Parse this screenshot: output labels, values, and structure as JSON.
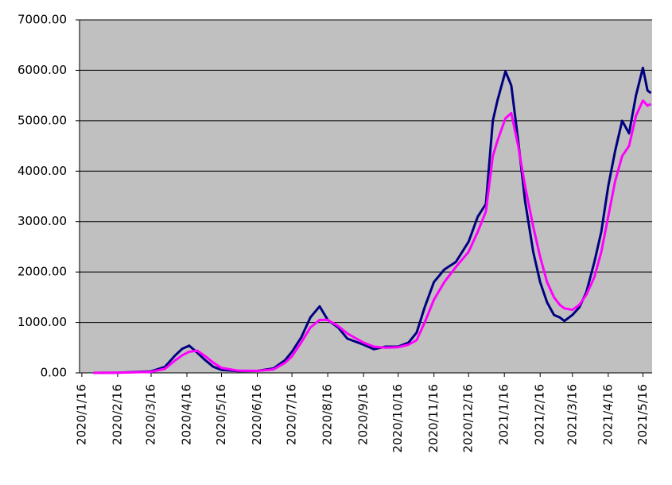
{
  "chart_data": {
    "type": "line",
    "x": [
      "2020/1/26",
      "2020/2/16",
      "2020/3/16",
      "2020/3/28",
      "2020/4/6",
      "2020/4/12",
      "2020/4/18",
      "2020/4/25",
      "2020/5/2",
      "2020/5/9",
      "2020/5/16",
      "2020/5/30",
      "2020/6/16",
      "2020/6/30",
      "2020/7/10",
      "2020/7/16",
      "2020/7/24",
      "2020/8/1",
      "2020/8/9",
      "2020/8/16",
      "2020/8/25",
      "2020/9/2",
      "2020/9/16",
      "2020/9/25",
      "2020/10/5",
      "2020/10/16",
      "2020/10/25",
      "2020/11/1",
      "2020/11/8",
      "2020/11/16",
      "2020/11/25",
      "2020/12/5",
      "2020/12/16",
      "2020/12/24",
      "2020/12/31",
      "2021/1/6",
      "2021/1/10",
      "2021/1/17",
      "2021/1/22",
      "2021/1/28",
      "2021/2/3",
      "2021/2/10",
      "2021/2/16",
      "2021/2/22",
      "2021/2/28",
      "2021/3/5",
      "2021/3/9",
      "2021/3/16",
      "2021/3/22",
      "2021/3/28",
      "2021/4/4",
      "2021/4/10",
      "2021/4/16",
      "2021/4/22",
      "2021/4/28",
      "2021/5/4",
      "2021/5/10",
      "2021/5/16",
      "2021/5/20",
      "2021/5/23"
    ],
    "series": [
      {
        "color": "#000080",
        "values": [
          0,
          5,
          30,
          120,
          350,
          480,
          540,
          400,
          250,
          120,
          60,
          35,
          40,
          90,
          250,
          420,
          700,
          1100,
          1320,
          1050,
          900,
          680,
          560,
          470,
          520,
          520,
          600,
          800,
          1300,
          1800,
          2050,
          2200,
          2600,
          3100,
          3350,
          5000,
          5400,
          5980,
          5700,
          4600,
          3400,
          2400,
          1800,
          1400,
          1150,
          1100,
          1030,
          1150,
          1300,
          1600,
          2200,
          2800,
          3700,
          4400,
          5000,
          4750,
          5500,
          6050,
          5600,
          5550
        ]
      },
      {
        "color": "#ff00ff",
        "values": [
          0,
          3,
          20,
          80,
          250,
          350,
          420,
          440,
          330,
          200,
          100,
          45,
          40,
          70,
          200,
          330,
          600,
          900,
          1050,
          1050,
          930,
          780,
          600,
          520,
          500,
          510,
          560,
          650,
          1000,
          1450,
          1800,
          2100,
          2400,
          2800,
          3200,
          4300,
          4600,
          5050,
          5150,
          4500,
          3700,
          2900,
          2300,
          1800,
          1500,
          1350,
          1280,
          1250,
          1350,
          1550,
          1900,
          2400,
          3100,
          3800,
          4300,
          4500,
          5100,
          5400,
          5300,
          5330
        ]
      }
    ],
    "xlim": [
      "2020/1/14",
      "2021/5/24"
    ],
    "xticks": [
      "2020/1/16",
      "2020/2/16",
      "2020/3/16",
      "2020/4/16",
      "2020/5/16",
      "2020/6/16",
      "2020/7/16",
      "2020/8/16",
      "2020/9/16",
      "2020/10/16",
      "2020/11/16",
      "2020/12/16",
      "2021/1/16",
      "2021/2/16",
      "2021/3/16",
      "2021/4/16",
      "2021/5/16"
    ],
    "ylim": [
      0,
      7000
    ],
    "yticks": [
      {
        "value": 0,
        "label": "0.00"
      },
      {
        "value": 1000,
        "label": "1000.00"
      },
      {
        "value": 2000,
        "label": "2000.00"
      },
      {
        "value": 3000,
        "label": "3000.00"
      },
      {
        "value": 4000,
        "label": "4000.00"
      },
      {
        "value": 5000,
        "label": "5000.00"
      },
      {
        "value": 6000,
        "label": "6000.00"
      },
      {
        "value": 7000,
        "label": "7000.00"
      }
    ],
    "grid": true,
    "background": "#c0c0c0"
  }
}
